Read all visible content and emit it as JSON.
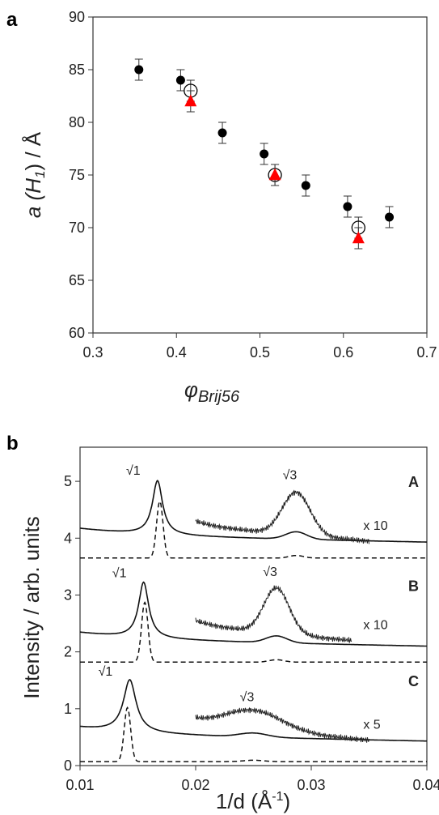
{
  "chart_data": [
    {
      "type": "scatter",
      "panel_label": "a",
      "title": "",
      "ylabel_main": "a (H",
      "ylabel_sub": "1",
      "ylabel_tail": ") / Å",
      "xlabel_main": "φ",
      "xlabel_sub": "Brij56",
      "xlim": [
        0.3,
        0.7
      ],
      "ylim": [
        60,
        90
      ],
      "xticks": [
        "0.3",
        "0.4",
        "0.5",
        "0.6",
        "0.7"
      ],
      "yticks": [
        "60",
        "65",
        "70",
        "75",
        "80",
        "85",
        "90"
      ],
      "grid": false,
      "series": [
        {
          "marker": "filled-circle",
          "color": "#000000",
          "x": [
            0.355,
            0.405,
            0.455,
            0.505,
            0.555,
            0.605,
            0.655
          ],
          "y": [
            85,
            84,
            79,
            77,
            74,
            72,
            71
          ],
          "err": [
            1,
            1,
            1,
            1,
            1,
            1,
            1
          ]
        },
        {
          "marker": "open-circle",
          "color": "#000000",
          "x": [
            0.417,
            0.518,
            0.618
          ],
          "y": [
            83,
            75,
            70
          ],
          "err": [
            1,
            1,
            1
          ]
        },
        {
          "marker": "triangle",
          "color": "#ff0000",
          "x": [
            0.417,
            0.518,
            0.618
          ],
          "y": [
            82,
            75,
            69
          ],
          "err": [
            1,
            1,
            1
          ]
        }
      ]
    },
    {
      "type": "line",
      "panel_label": "b",
      "title": "",
      "ylabel": "Intensity / arb. units",
      "xlabel": "1/d (Å",
      "xlabel_sup": "-1",
      "xlabel_tail": ")",
      "xlim": [
        0.01,
        0.04
      ],
      "ylim": [
        0,
        5.6
      ],
      "xticks": [
        "0.01",
        "0.02",
        "0.03",
        "0.04"
      ],
      "yticks": [
        "0",
        "1",
        "2",
        "3",
        "4",
        "5"
      ],
      "grid": false,
      "traces": [
        {
          "label": "A",
          "baseline": 4.05,
          "dash_baseline": 3.65,
          "p1_x": 0.0167,
          "p1_h": 0.95,
          "p1_w": 0.00048,
          "d1_x": 0.0169,
          "d1_h": 1.0,
          "d1_w": 0.00028,
          "p3_x": 0.0287,
          "p3_h": 0.13,
          "p3_w": 0.0009,
          "mag_baseline": 4.2,
          "mag_x0": 0.02,
          "mag_x1": 0.035,
          "mag_p3_h": 0.75,
          "mag_p3_w": 0.0012,
          "peak1_label": "√1",
          "peak3_label": "√3",
          "scale_label": "x 10"
        },
        {
          "label": "B",
          "baseline": 2.22,
          "dash_baseline": 1.82,
          "p1_x": 0.0155,
          "p1_h": 0.98,
          "p1_w": 0.00048,
          "d1_x": 0.0156,
          "d1_h": 1.05,
          "d1_w": 0.00028,
          "p3_x": 0.027,
          "p3_h": 0.12,
          "p3_w": 0.0009,
          "mag_baseline": 2.45,
          "mag_x0": 0.02,
          "mag_x1": 0.0335,
          "mag_p3_h": 0.8,
          "mag_p3_w": 0.0011,
          "peak1_label": "√1",
          "peak3_label": "√3",
          "scale_label": "x 10"
        },
        {
          "label": "C",
          "baseline": 0.55,
          "dash_baseline": 0.07,
          "p1_x": 0.0143,
          "p1_h": 0.92,
          "p1_w": 0.0006,
          "d1_x": 0.0141,
          "d1_h": 0.95,
          "d1_w": 0.00028,
          "p3_x": 0.025,
          "p3_h": 0.07,
          "p3_w": 0.0012,
          "mag_baseline": 0.7,
          "mag_x0": 0.02,
          "mag_x1": 0.035,
          "mag_p3_h": 0.35,
          "mag_p3_w": 0.0025,
          "peak1_label": "√1",
          "peak3_label": "√3",
          "scale_label": "x 5"
        }
      ]
    }
  ]
}
